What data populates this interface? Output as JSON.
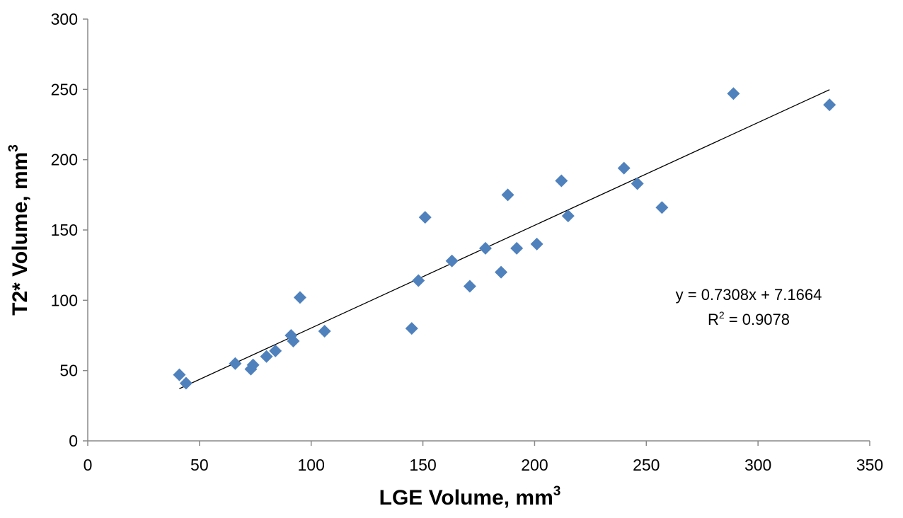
{
  "chart_data": {
    "type": "scatter",
    "title": "",
    "xlabel": "LGE Volume, mm",
    "xlabel_sup": "3",
    "ylabel": "T2* Volume, mm",
    "ylabel_sup": "3",
    "xlim": [
      0,
      350
    ],
    "ylim": [
      0,
      300
    ],
    "xticks": [
      0,
      50,
      100,
      150,
      200,
      250,
      300,
      350
    ],
    "yticks": [
      0,
      50,
      100,
      150,
      200,
      250,
      300
    ],
    "grid": false,
    "legend": "none",
    "marker_color": "#4F81BD",
    "series": [
      {
        "marker": "diamond",
        "points": [
          [
            41,
            47
          ],
          [
            44,
            41
          ],
          [
            66,
            55
          ],
          [
            73,
            51
          ],
          [
            74,
            54
          ],
          [
            80,
            60
          ],
          [
            84,
            64
          ],
          [
            91,
            75
          ],
          [
            92,
            71
          ],
          [
            95,
            102
          ],
          [
            106,
            78
          ],
          [
            145,
            80
          ],
          [
            148,
            114
          ],
          [
            151,
            159
          ],
          [
            163,
            128
          ],
          [
            171,
            110
          ],
          [
            178,
            137
          ],
          [
            185,
            120
          ],
          [
            188,
            175
          ],
          [
            192,
            137
          ],
          [
            201,
            140
          ],
          [
            212,
            185
          ],
          [
            215,
            160
          ],
          [
            240,
            194
          ],
          [
            246,
            183
          ],
          [
            257,
            166
          ],
          [
            289,
            247
          ],
          [
            332,
            239
          ]
        ]
      }
    ],
    "trendline": {
      "slope": 0.7308,
      "intercept": 7.1664,
      "x_range": [
        41,
        332
      ],
      "equation_text": "y = 0.7308x + 7.1664",
      "r2_prefix": "R",
      "r2_sup": "2",
      "r2_suffix": " = 0.9078"
    }
  }
}
